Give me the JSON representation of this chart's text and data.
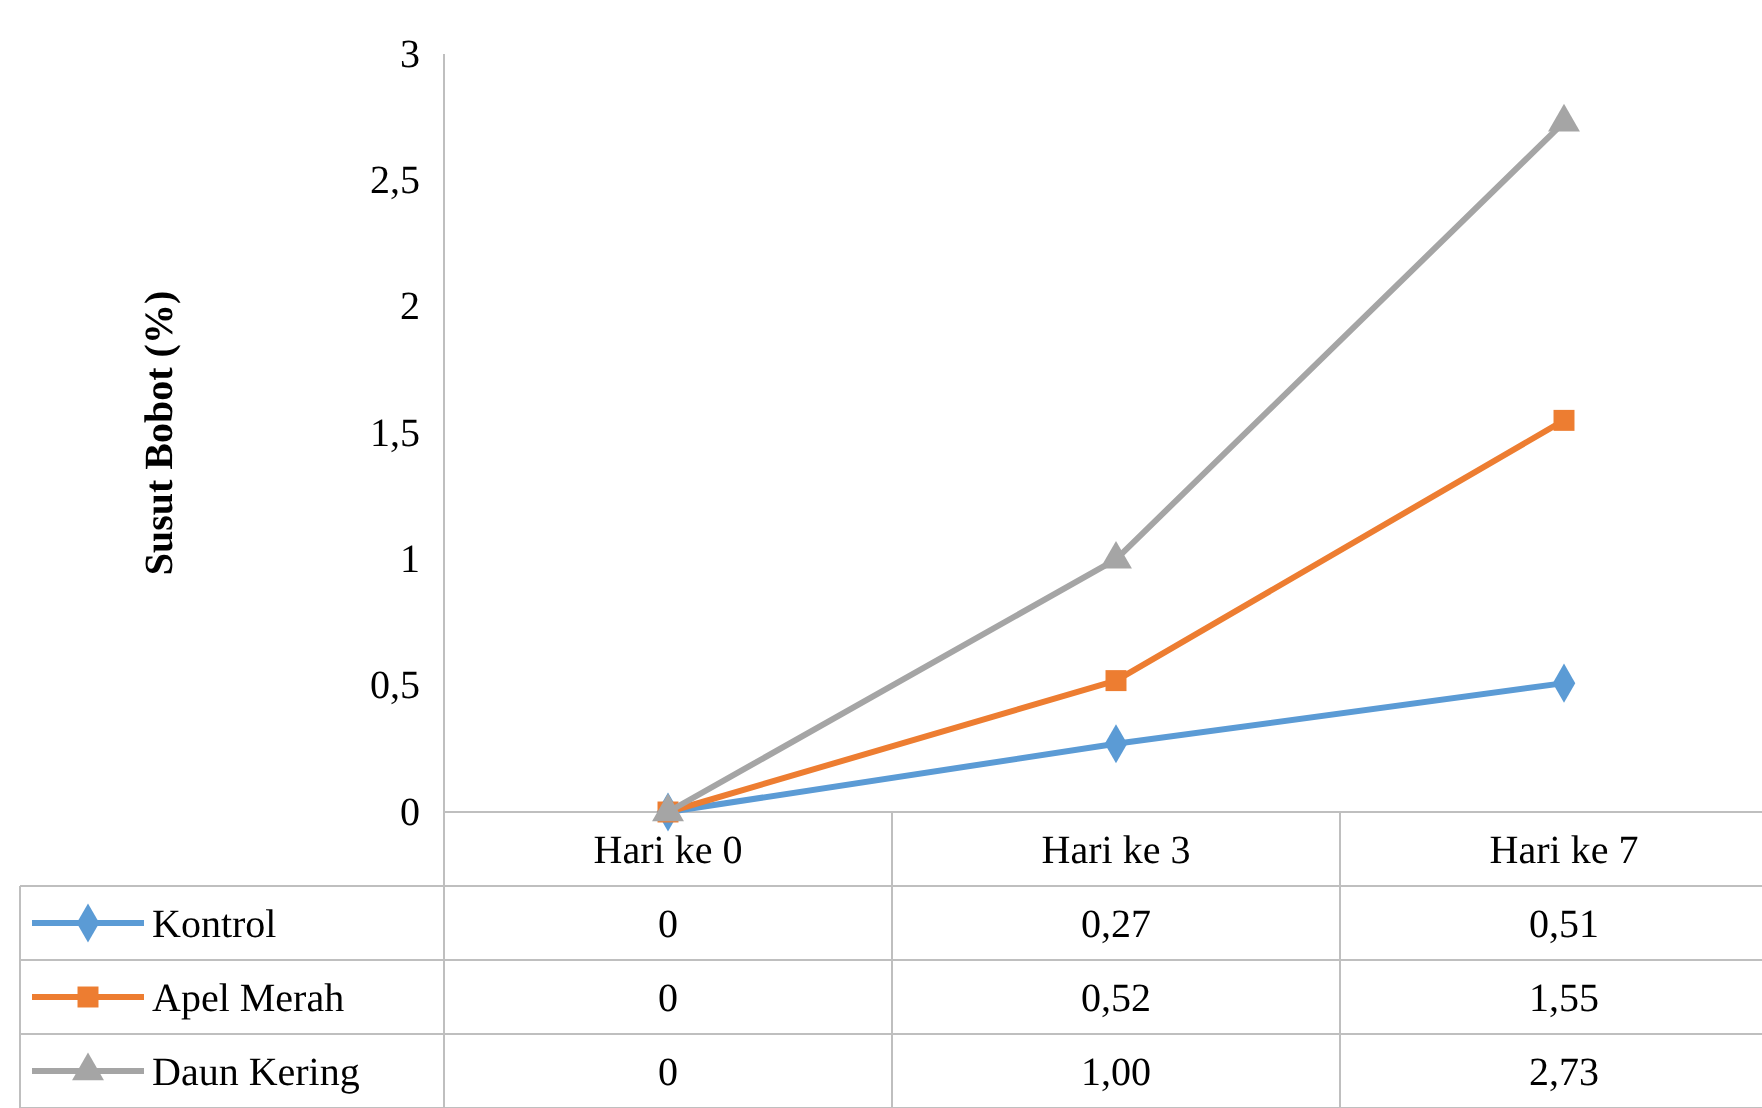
{
  "chart_data": {
    "type": "line",
    "ylabel": "Susut Bobot (%)",
    "categories": [
      "Hari ke 0",
      "Hari ke 3",
      "Hari ke 7"
    ],
    "ylim": [
      0,
      3
    ],
    "yticks": [
      0,
      {
        "value": 0.5,
        "label": "0,5"
      },
      1,
      {
        "value": 1.5,
        "label": "1,5"
      },
      2,
      {
        "value": 2.5,
        "label": "2,5"
      },
      3
    ],
    "legend": "bottom",
    "series": [
      {
        "name": "Kontrol",
        "color": "#5b9bd5",
        "marker": "diamond",
        "values": [
          0,
          0.27,
          0.51
        ],
        "value_labels": [
          "0",
          "0,27",
          "0,51"
        ]
      },
      {
        "name": "Apel Merah",
        "color": "#ed7d31",
        "marker": "square",
        "values": [
          0,
          0.52,
          1.55
        ],
        "value_labels": [
          "0",
          "0,52",
          "1,55"
        ]
      },
      {
        "name": "Daun Kering",
        "color": "#a5a5a5",
        "marker": "triangle",
        "values": [
          0,
          1.0,
          2.73
        ],
        "value_labels": [
          "0",
          "1,00",
          "2,73"
        ]
      }
    ]
  }
}
